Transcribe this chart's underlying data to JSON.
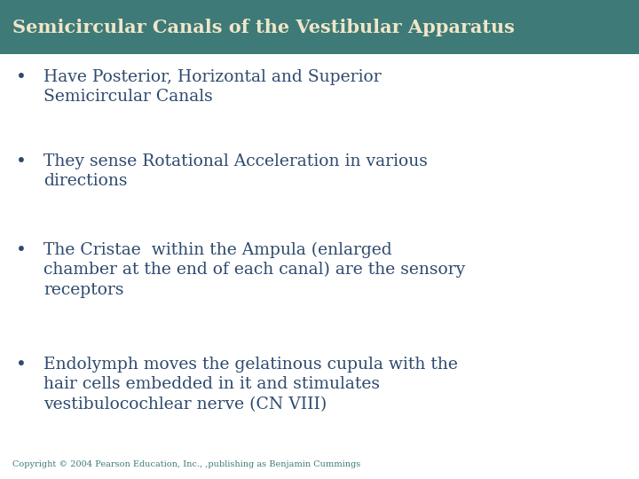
{
  "title": "Semicircular Canals of the Vestibular Apparatus",
  "title_bg_color": "#3d7a78",
  "title_text_color": "#f0e6c8",
  "body_bg_color": "#ffffff",
  "bullet_color": "#2e4a6e",
  "copyright_text": "Copyright © 2004 Pearson Education, Inc., ,publishing as Benjamin Cummings",
  "copyright_color": "#3d7a78",
  "bullets": [
    "Have Posterior, Horizontal and Superior\nSemicircular Canals",
    "They sense Rotational Acceleration in various\ndirections",
    "The Cristae  within the Ampula (enlarged\nchamber at the end of each canal) are the sensory\nreceptors",
    "Endolymph moves the gelatinous cupula with the\nhair cells embedded in it and stimulates\nvestibulocochlear nerve (CN VIII)"
  ],
  "fig_width": 7.2,
  "fig_height": 5.4,
  "dpi": 100,
  "title_fontsize": 15,
  "bullet_fontsize": 13.5,
  "copyright_fontsize": 7.0
}
